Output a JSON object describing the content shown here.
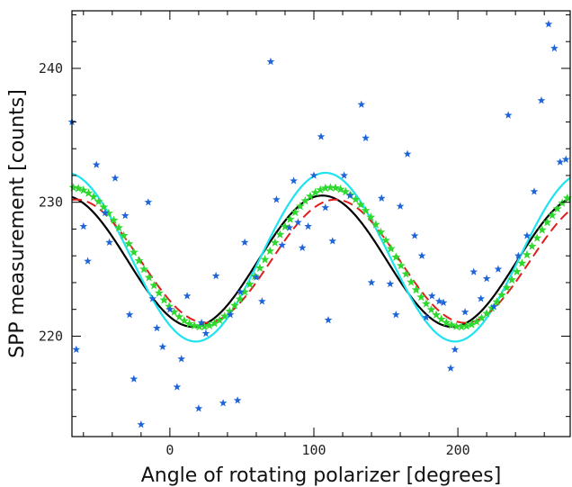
{
  "chart_data": {
    "type": "scatter",
    "title": "",
    "xlabel": "Angle of rotating polarizer [degrees]",
    "ylabel": "SPP measurement [counts]",
    "xlim": [
      -68,
      278
    ],
    "ylim": [
      212.5,
      244.3
    ],
    "xticks": [
      0,
      100,
      200
    ],
    "yticks": [
      220,
      230,
      240
    ],
    "xtick_labels": [
      "0",
      "100",
      "200"
    ],
    "ytick_labels": [
      "220",
      "230",
      "240"
    ],
    "grid": false,
    "legend": "none",
    "scatter_points": {
      "color": "#1d64d8",
      "marker": "star",
      "points": [
        [
          -68,
          236.0
        ],
        [
          -65,
          219.0
        ],
        [
          -60,
          228.2
        ],
        [
          -57,
          225.6
        ],
        [
          -51,
          232.8
        ],
        [
          -45,
          229.2
        ],
        [
          -42,
          227.0
        ],
        [
          -38,
          231.8
        ],
        [
          -31,
          229.0
        ],
        [
          -28,
          221.6
        ],
        [
          -25,
          216.8
        ],
        [
          -20,
          213.4
        ],
        [
          -15,
          230.0
        ],
        [
          -12,
          222.8
        ],
        [
          -9,
          220.6
        ],
        [
          -5,
          219.2
        ],
        [
          0,
          222.0
        ],
        [
          5,
          216.2
        ],
        [
          8,
          218.3
        ],
        [
          12,
          223.0
        ],
        [
          20,
          214.6
        ],
        [
          22,
          221.0
        ],
        [
          25,
          220.2
        ],
        [
          32,
          224.5
        ],
        [
          37,
          215.0
        ],
        [
          42,
          221.6
        ],
        [
          47,
          215.2
        ],
        [
          49,
          223.3
        ],
        [
          52,
          227.0
        ],
        [
          60,
          224.4
        ],
        [
          64,
          222.6
        ],
        [
          70,
          240.5
        ],
        [
          74,
          230.2
        ],
        [
          78,
          226.8
        ],
        [
          83,
          228.1
        ],
        [
          86,
          231.6
        ],
        [
          89,
          228.5
        ],
        [
          92,
          226.6
        ],
        [
          96,
          228.2
        ],
        [
          100,
          232.0
        ],
        [
          105,
          234.9
        ],
        [
          108,
          229.6
        ],
        [
          110,
          221.2
        ],
        [
          113,
          227.1
        ],
        [
          121,
          232.0
        ],
        [
          125,
          230.5
        ],
        [
          133,
          237.3
        ],
        [
          136,
          234.8
        ],
        [
          140,
          224.0
        ],
        [
          147,
          230.3
        ],
        [
          153,
          223.9
        ],
        [
          157,
          221.6
        ],
        [
          160,
          229.7
        ],
        [
          165,
          233.6
        ],
        [
          170,
          227.5
        ],
        [
          175,
          226.0
        ],
        [
          178,
          221.4
        ],
        [
          182,
          223.0
        ],
        [
          187,
          222.6
        ],
        [
          190,
          222.5
        ],
        [
          195,
          217.6
        ],
        [
          198,
          219.0
        ],
        [
          205,
          221.8
        ],
        [
          211,
          224.8
        ],
        [
          216,
          222.8
        ],
        [
          220,
          224.3
        ],
        [
          225,
          222.2
        ],
        [
          228,
          225.0
        ],
        [
          235,
          236.5
        ],
        [
          242,
          226.0
        ],
        [
          248,
          227.5
        ],
        [
          253,
          230.8
        ],
        [
          258,
          237.6
        ],
        [
          263,
          243.3
        ],
        [
          267,
          241.5
        ],
        [
          271,
          233.0
        ],
        [
          275,
          233.2
        ]
      ]
    },
    "series": [
      {
        "style": "solid",
        "color": "#000000",
        "width": 2.2,
        "mean": 225.6,
        "amplitude": 4.9,
        "peak_deg": 106
      },
      {
        "style": "solid",
        "color": "#1ee3f0",
        "width": 2.2,
        "mean": 225.9,
        "amplitude": 6.3,
        "peak_deg": 108
      },
      {
        "style": "dashed",
        "color": "#e01e1e",
        "width": 2.0,
        "mean": 225.6,
        "amplitude": 4.6,
        "peak_deg": 115
      },
      {
        "style": "stars",
        "color": "#2ed82e",
        "mean": 225.9,
        "amplitude": 5.2,
        "peak_deg": 112,
        "step_deg": 3.5
      }
    ]
  }
}
